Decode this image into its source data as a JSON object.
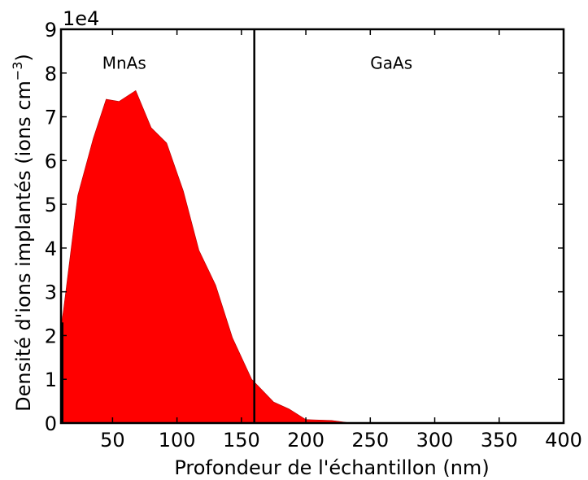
{
  "chart_data": {
    "type": "area",
    "title": "",
    "xlabel": "Profondeur de l'échantillon (nm)",
    "ylabel": "Densité d'ions implantés (ions cm",
    "ylabel_sup": "−3",
    "ylabel_close": ")",
    "xlim": [
      10,
      400
    ],
    "ylim": [
      0,
      90000
    ],
    "y_offset_label": "1e4",
    "x_ticks": [
      50,
      100,
      150,
      200,
      250,
      300,
      350,
      400
    ],
    "x_tick_labels": [
      "50",
      "100",
      "150",
      "200",
      "250",
      "300",
      "350",
      "400"
    ],
    "y_ticks": [
      0,
      10000,
      20000,
      30000,
      40000,
      50000,
      60000,
      70000,
      80000,
      90000
    ],
    "y_tick_labels": [
      "0",
      "1",
      "2",
      "3",
      "4",
      "5",
      "6",
      "7",
      "8",
      "9"
    ],
    "grid": false,
    "fill_color": "#ff0000",
    "boundary": {
      "x": 160,
      "color": "#000000"
    },
    "annotations": [
      {
        "text": "MnAs",
        "x": 42,
        "y": 81000
      },
      {
        "text": "GaAs",
        "x": 250,
        "y": 81000
      }
    ],
    "series": [
      {
        "x": [
          10,
          12,
          23,
          35,
          45,
          55,
          68,
          80,
          92,
          105,
          117,
          130,
          143,
          158,
          175,
          187,
          200,
          220,
          233,
          250,
          300,
          350,
          400
        ],
        "values": [
          22000,
          26000,
          52000,
          65000,
          74000,
          73500,
          76000,
          67500,
          64000,
          53000,
          39500,
          31500,
          19500,
          10000,
          4800,
          3200,
          800,
          600,
          100,
          0,
          0,
          0,
          0
        ]
      }
    ]
  }
}
